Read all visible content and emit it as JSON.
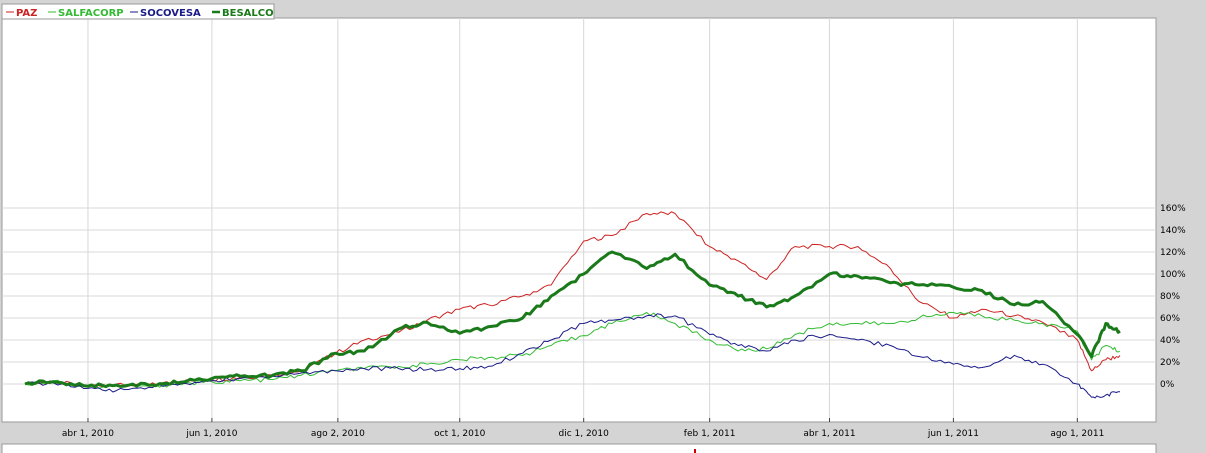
{
  "chart_data": {
    "type": "line",
    "title": "",
    "xlabel": "",
    "ylabel": "",
    "x_tick_labels": [
      "abr 1, 2010",
      "jun 1, 2010",
      "ago 2, 2010",
      "oct 1, 2010",
      "dic 1, 2010",
      "feb 1, 2011",
      "abr 1, 2011",
      "jun 1, 2011",
      "ago 1, 2011"
    ],
    "y_tick_labels": [
      "0%",
      "20%",
      "40%",
      "60%",
      "80%",
      "100%",
      "120%",
      "140%",
      "160%"
    ],
    "ylim": [
      -15,
      162
    ],
    "grid": true,
    "legend_position": "top-left",
    "x": [
      "2010-03-01",
      "2010-03-15",
      "2010-04-01",
      "2010-04-15",
      "2010-05-01",
      "2010-05-15",
      "2010-06-01",
      "2010-06-15",
      "2010-07-01",
      "2010-07-15",
      "2010-08-01",
      "2010-08-15",
      "2010-09-01",
      "2010-09-15",
      "2010-10-01",
      "2010-10-15",
      "2010-11-01",
      "2010-11-15",
      "2010-12-01",
      "2010-12-15",
      "2011-01-01",
      "2011-01-15",
      "2011-02-01",
      "2011-02-15",
      "2011-03-01",
      "2011-03-15",
      "2011-04-01",
      "2011-04-15",
      "2011-05-01",
      "2011-05-15",
      "2011-06-01",
      "2011-06-15",
      "2011-07-01",
      "2011-07-15",
      "2011-08-01",
      "2011-08-08",
      "2011-08-15",
      "2011-08-22"
    ],
    "series": [
      {
        "name": "PAZ",
        "color": "#cc2222",
        "width": 1,
        "values": [
          0,
          2,
          -2,
          0,
          -1,
          2,
          4,
          6,
          8,
          12,
          28,
          40,
          47,
          58,
          68,
          72,
          80,
          90,
          130,
          135,
          155,
          155,
          125,
          112,
          95,
          125,
          125,
          125,
          105,
          75,
          60,
          68,
          62,
          56,
          40,
          12,
          22,
          26
        ]
      },
      {
        "name": "SALFACORP",
        "color": "#33bb33",
        "width": 1,
        "values": [
          0,
          3,
          -3,
          -1,
          -2,
          0,
          2,
          3,
          4,
          8,
          12,
          14,
          16,
          18,
          22,
          24,
          26,
          35,
          44,
          55,
          65,
          55,
          40,
          30,
          32,
          45,
          55,
          55,
          55,
          60,
          65,
          62,
          58,
          55,
          48,
          22,
          35,
          30
        ]
      },
      {
        "name": "SOCOVESA",
        "color": "#1a1a88",
        "width": 1,
        "values": [
          0,
          1,
          -4,
          -6,
          -3,
          -1,
          3,
          5,
          7,
          10,
          12,
          14,
          14,
          13,
          14,
          16,
          28,
          40,
          55,
          58,
          62,
          62,
          45,
          35,
          30,
          40,
          45,
          40,
          35,
          25,
          18,
          15,
          26,
          18,
          0,
          -12,
          -10,
          -7
        ]
      },
      {
        "name": "BESALCO",
        "color": "#1a7a1a",
        "width": 3,
        "values": [
          0,
          2,
          -2,
          -1,
          -1,
          1,
          5,
          7,
          8,
          12,
          28,
          30,
          50,
          56,
          46,
          52,
          60,
          80,
          100,
          120,
          105,
          118,
          90,
          80,
          70,
          80,
          100,
          98,
          92,
          90,
          88,
          85,
          72,
          75,
          45,
          25,
          55,
          48
        ]
      }
    ]
  }
}
